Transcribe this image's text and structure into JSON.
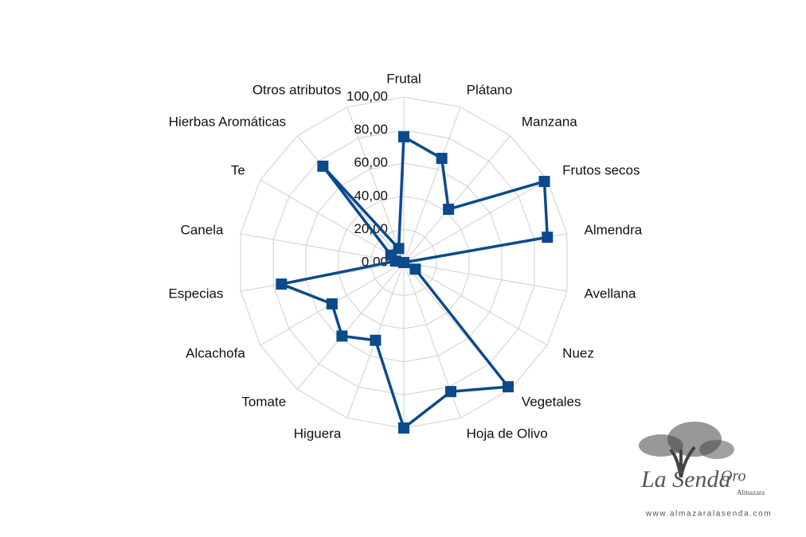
{
  "chart_data": {
    "type": "radar",
    "categories": [
      "Frutal",
      "Plátano",
      "Manzana",
      "Frutos secos",
      "Almendra",
      "Avellana",
      "Nuez",
      "Vegetales",
      "Hoja de Olivo",
      null,
      "Higuera",
      "Tomate",
      "Alcachofa",
      "Especias",
      "Canela",
      "Te",
      "Hierbas Aromáticas",
      "Otros atributos"
    ],
    "values": [
      76,
      67,
      42,
      98,
      88,
      0,
      8,
      98,
      83,
      100,
      50,
      58,
      50,
      75,
      5,
      9,
      76,
      9
    ],
    "color": "#0b4a8b",
    "ylim": [
      0,
      100
    ],
    "yticks": [
      {
        "value": 0,
        "label": "0,00"
      },
      {
        "value": 20,
        "label": "20,00"
      },
      {
        "value": 40,
        "label": "40,00"
      },
      {
        "value": 60,
        "label": "60,00"
      },
      {
        "value": 80,
        "label": "80,00"
      },
      {
        "value": 100,
        "label": "100,00"
      }
    ],
    "grid": true
  },
  "logo": {
    "name": "La Senda",
    "accent": "Oro",
    "subtitle": "Almazara",
    "url": "www.almazaralasenda.com"
  }
}
